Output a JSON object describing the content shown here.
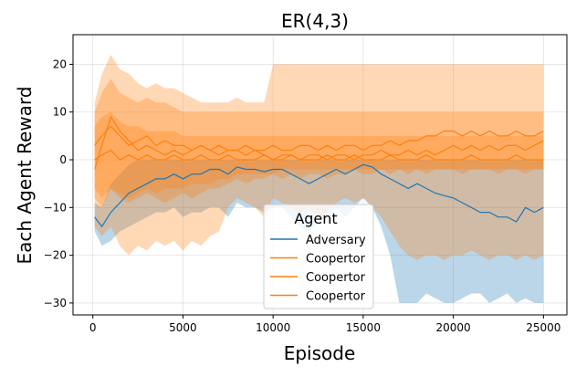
{
  "chart_data": {
    "type": "line",
    "title": "ER(4,3)",
    "xlabel": "Episode",
    "ylabel": "Each Agent Reward",
    "xlim": [
      -1100,
      26300
    ],
    "ylim": [
      -32.5,
      26.2
    ],
    "xticks": [
      0,
      5000,
      10000,
      15000,
      20000,
      25000
    ],
    "xtick_labels": [
      "0",
      "5000",
      "10000",
      "15000",
      "20000",
      "25000"
    ],
    "yticks": [
      -30,
      -20,
      -10,
      0,
      10,
      20
    ],
    "ytick_labels": [
      "−30",
      "−20",
      "−10",
      "0",
      "10",
      "20"
    ],
    "grid": true,
    "legend": {
      "title": "Agent",
      "placement": "bottom-center",
      "entries": [
        "Adversary",
        "Coopertor",
        "Coopertor",
        "Coopertor"
      ]
    },
    "colors": {
      "adversary": "#1f77b4",
      "coopertor": "#ff7f0e"
    },
    "series": [
      {
        "name": "Adversary",
        "color": "#1f77b4",
        "x": [
          100,
          500,
          1000,
          1500,
          2000,
          2500,
          3000,
          3500,
          4000,
          4500,
          5000,
          5500,
          6000,
          6500,
          7000,
          7500,
          8000,
          8500,
          9000,
          9500,
          10000,
          10500,
          11000,
          11500,
          12000,
          12500,
          13000,
          13500,
          14000,
          14500,
          15000,
          15500,
          16000,
          16500,
          17000,
          17500,
          18000,
          18500,
          19000,
          19500,
          20000,
          20500,
          21000,
          21500,
          22000,
          22500,
          23000,
          23500,
          24000,
          24500,
          25000
        ],
        "mean": [
          -12,
          -14,
          -11,
          -9,
          -7,
          -6,
          -5,
          -4,
          -4,
          -3,
          -4,
          -3,
          -3,
          -2,
          -2,
          -3,
          -1.5,
          -2,
          -2,
          -2.5,
          -2,
          -2,
          -3,
          -4,
          -5,
          -4,
          -3,
          -2,
          -3,
          -2,
          -1,
          -1.5,
          -3,
          -4,
          -5,
          -6,
          -5,
          -6,
          -7,
          -7.5,
          -8,
          -9,
          -10,
          -11,
          -11,
          -12,
          -12,
          -13,
          -10,
          -11,
          -10
        ],
        "lower": [
          -15,
          -18,
          -17,
          -15,
          -14,
          -13,
          -12,
          -11,
          -11,
          -10,
          -12,
          -11,
          -11,
          -10,
          -10,
          -12,
          -9,
          -10,
          -10,
          -11,
          -10,
          -10,
          -12,
          -14,
          -15,
          -13,
          -12,
          -10,
          -12,
          -10,
          -8,
          -10,
          -14,
          -20,
          -30,
          -30,
          -30,
          -28,
          -29,
          -30,
          -30,
          -29,
          -28,
          -28,
          -30,
          -29,
          -28,
          -30,
          -29,
          -30,
          -30
        ],
        "upper": [
          -9,
          -10,
          -5,
          -3,
          -1,
          0,
          0,
          0,
          0,
          0,
          0,
          0,
          0,
          0,
          0,
          0,
          0,
          0,
          0,
          0,
          0,
          0,
          0,
          0,
          0,
          0,
          0,
          0,
          0,
          0,
          0,
          0,
          0,
          0,
          0,
          0,
          0,
          0,
          0,
          0,
          0,
          0,
          0,
          0,
          0,
          0,
          0,
          0,
          0,
          0,
          0
        ]
      },
      {
        "name": "Coopertor",
        "color": "#ff7f0e",
        "x": [
          100,
          500,
          1000,
          1500,
          2000,
          2500,
          3000,
          3500,
          4000,
          4500,
          5000,
          5500,
          6000,
          6500,
          7000,
          7500,
          8000,
          8500,
          9000,
          9500,
          10000,
          10500,
          11000,
          11500,
          12000,
          12500,
          13000,
          13500,
          14000,
          14500,
          15000,
          15500,
          16000,
          16500,
          17000,
          17500,
          18000,
          18500,
          19000,
          19500,
          20000,
          20500,
          21000,
          21500,
          22000,
          22500,
          23000,
          23500,
          24000,
          24500,
          25000
        ],
        "mean": [
          -2,
          3,
          9,
          6,
          4,
          2,
          3,
          2,
          1,
          2,
          1,
          2,
          3,
          2,
          1,
          2,
          2,
          1,
          2,
          1,
          0,
          1,
          1,
          0,
          1,
          1,
          0,
          1,
          1,
          0,
          1,
          1,
          2,
          1,
          1,
          2,
          1,
          2,
          1,
          2,
          3,
          2,
          3,
          2,
          3,
          2,
          3,
          3,
          2,
          3,
          4
        ],
        "lower": [
          -14,
          -16,
          -14,
          -18,
          -20,
          -18,
          -19,
          -17,
          -18,
          -17,
          -19,
          -17,
          -18,
          -16,
          -15,
          -10,
          -8,
          -9,
          -10,
          -12,
          -8,
          -9,
          -10,
          -11,
          -10,
          -12,
          -11,
          -9,
          -8,
          -9,
          -8,
          -10,
          -12,
          -15,
          -18,
          -20,
          -21,
          -20,
          -20,
          -21,
          -20,
          -20,
          -19,
          -20,
          -21,
          -20,
          -20,
          -21,
          -20,
          -21,
          -20
        ],
        "upper": [
          12,
          18,
          22,
          19,
          18,
          16,
          15,
          16,
          15,
          15,
          14,
          13,
          12,
          12,
          12,
          12,
          13,
          12,
          12,
          12,
          20,
          20,
          20,
          20,
          20,
          20,
          20,
          20,
          20,
          20,
          20,
          20,
          20,
          20,
          20,
          20,
          20,
          20,
          20,
          20,
          20,
          20,
          20,
          20,
          20,
          20,
          20,
          20,
          20,
          20,
          20
        ]
      },
      {
        "name": "Coopertor",
        "color": "#ff7f0e",
        "x": [
          100,
          500,
          1000,
          1500,
          2000,
          2500,
          3000,
          3500,
          4000,
          4500,
          5000,
          5500,
          6000,
          6500,
          7000,
          7500,
          8000,
          8500,
          9000,
          9500,
          10000,
          10500,
          11000,
          11500,
          12000,
          12500,
          13000,
          13500,
          14000,
          14500,
          15000,
          15500,
          16000,
          16500,
          17000,
          17500,
          18000,
          18500,
          19000,
          19500,
          20000,
          20500,
          21000,
          21500,
          22000,
          22500,
          23000,
          23500,
          24000,
          24500,
          25000
        ],
        "mean": [
          3,
          5,
          7,
          5,
          3,
          4,
          5,
          3,
          4,
          3,
          3,
          2,
          3,
          2,
          3,
          2,
          2,
          3,
          2,
          2,
          3,
          2,
          2,
          3,
          3,
          2,
          3,
          2,
          3,
          3,
          2,
          3,
          3,
          4,
          3,
          4,
          4,
          5,
          5,
          6,
          6,
          5,
          6,
          5,
          6,
          5,
          5,
          6,
          5,
          5,
          6
        ],
        "lower": [
          -8,
          -10,
          -6,
          -8,
          -9,
          -8,
          -7,
          -8,
          -9,
          -8,
          -7,
          -8,
          -7,
          -6,
          -6,
          -5,
          -4,
          -5,
          -4,
          -4,
          -3,
          -4,
          -3,
          -4,
          -3,
          -3,
          -4,
          -3,
          -3,
          -2,
          -3,
          -3,
          -2,
          -3,
          -2,
          -3,
          -2,
          -3,
          -2,
          -2,
          -2,
          -3,
          -2,
          -2,
          -2,
          -3,
          -2,
          -2,
          -3,
          -2,
          -2
        ],
        "upper": [
          10,
          14,
          17,
          14,
          13,
          12,
          13,
          12,
          12,
          11,
          10,
          10,
          10,
          10,
          10,
          10,
          10,
          10,
          10,
          10,
          10,
          10,
          10,
          10,
          10,
          10,
          10,
          10,
          10,
          10,
          10,
          10,
          10,
          10,
          10,
          10,
          10,
          10,
          10,
          10,
          10,
          10,
          10,
          10,
          10,
          10,
          10,
          10,
          10,
          10,
          10
        ]
      },
      {
        "name": "Coopertor",
        "color": "#ff7f0e",
        "x": [
          100,
          500,
          1000,
          1500,
          2000,
          2500,
          3000,
          3500,
          4000,
          4500,
          5000,
          5500,
          6000,
          6500,
          7000,
          7500,
          8000,
          8500,
          9000,
          9500,
          10000,
          10500,
          11000,
          11500,
          12000,
          12500,
          13000,
          13500,
          14000,
          14500,
          15000,
          15500,
          16000,
          16500,
          17000,
          17500,
          18000,
          18500,
          19000,
          19500,
          20000,
          20500,
          21000,
          21500,
          22000,
          22500,
          23000,
          23500,
          24000,
          24500,
          25000
        ],
        "mean": [
          0,
          1,
          2,
          0,
          1,
          0,
          1,
          0,
          0,
          1,
          0,
          0,
          1,
          0,
          0,
          1,
          0,
          0,
          0,
          1,
          0,
          0,
          1,
          0,
          0,
          0,
          1,
          0,
          0,
          1,
          0,
          0,
          0,
          1,
          0,
          0,
          0,
          1,
          0,
          0,
          0,
          0,
          1,
          0,
          0,
          0,
          0,
          1,
          0,
          0,
          0
        ],
        "lower": [
          -6,
          -8,
          -6,
          -7,
          -8,
          -7,
          -6,
          -7,
          -6,
          -6,
          -6,
          -5,
          -5,
          -5,
          -4,
          -4,
          -3,
          -3,
          -3,
          -3,
          -3,
          -2,
          -2,
          -2,
          -2,
          -2,
          -2,
          -2,
          -2,
          -2,
          -2,
          -2,
          -2,
          -2,
          -2,
          -2,
          -2,
          -2,
          -2,
          -2,
          -2,
          -2,
          -2,
          -2,
          -2,
          -2,
          -2,
          -2,
          -2,
          -2,
          -2
        ],
        "upper": [
          7,
          9,
          10,
          8,
          7,
          7,
          6,
          6,
          6,
          6,
          5,
          5,
          5,
          5,
          5,
          5,
          5,
          5,
          5,
          5,
          5,
          5,
          5,
          5,
          5,
          5,
          5,
          5,
          5,
          5,
          5,
          5,
          5,
          5,
          5,
          5,
          5,
          5,
          5,
          5,
          5,
          5,
          5,
          5,
          5,
          5,
          5,
          5,
          5,
          5,
          5
        ]
      }
    ]
  }
}
